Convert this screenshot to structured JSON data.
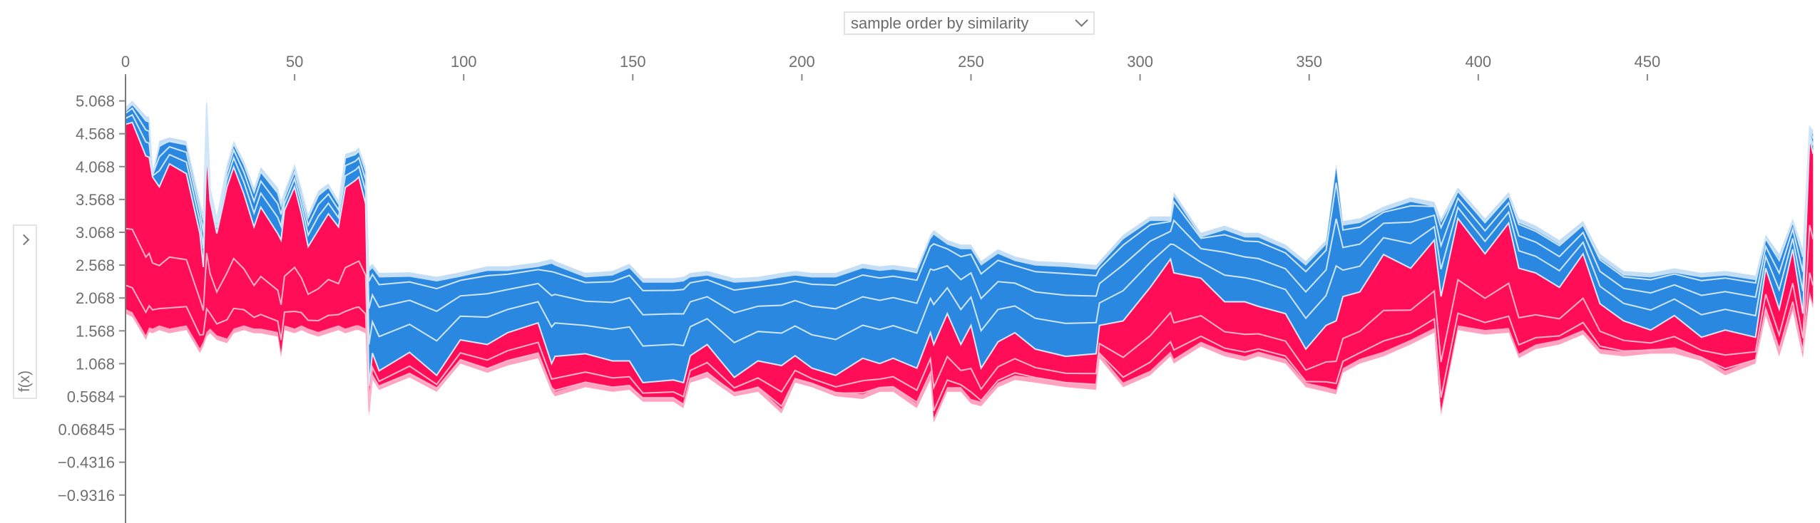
{
  "controls": {
    "order_select": "sample order by similarity",
    "y_select_label": "f(x)"
  },
  "colors": {
    "positive": "#ff0d57",
    "negative": "#2a88e0",
    "positive_edge": "#ffa3c0",
    "negative_edge": "#c4def6"
  },
  "chart_data": {
    "type": "area",
    "title": "",
    "xlabel": "",
    "ylabel": "f(x)",
    "xlim": [
      0,
      499
    ],
    "ylim": [
      -1.2,
      5.4
    ],
    "x_ticks": [
      "0",
      "50",
      "100",
      "150",
      "200",
      "250",
      "300",
      "350",
      "400",
      "450"
    ],
    "x_tick_values": [
      0,
      50,
      100,
      150,
      200,
      250,
      300,
      350,
      400,
      450
    ],
    "y_ticks": [
      "5.068",
      "4.568",
      "4.068",
      "3.568",
      "3.068",
      "2.568",
      "2.068",
      "1.568",
      "1.068",
      "0.5684",
      "0.06845",
      "-0.4316",
      "-0.9316"
    ],
    "y_tick_values": [
      5.068,
      4.568,
      4.068,
      3.568,
      3.068,
      2.568,
      2.068,
      1.568,
      1.068,
      0.5684,
      0.06845,
      -0.4316,
      -0.9316
    ],
    "series_fields": [
      "sample",
      "upper",
      "output_boundary",
      "lower"
    ],
    "series_note": "blue = negative contributions between upper and output_boundary; red = positive contributions between output_boundary and lower",
    "points": [
      [
        0,
        4.97,
        4.71,
        1.83
      ],
      [
        2,
        5.07,
        4.74,
        1.78
      ],
      [
        6,
        4.84,
        4.23,
        1.43
      ],
      [
        7,
        4.82,
        4.21,
        1.55
      ],
      [
        8,
        3.96,
        3.91,
        1.53
      ],
      [
        10,
        4.46,
        3.76,
        1.58
      ],
      [
        13,
        4.51,
        4.11,
        1.53
      ],
      [
        18,
        4.46,
        3.96,
        1.58
      ],
      [
        22,
        3.55,
        3.05,
        1.23
      ],
      [
        23,
        3.35,
        2.54,
        1.33
      ],
      [
        24,
        5.12,
        4.31,
        1.48
      ],
      [
        25,
        3.75,
        3.55,
        1.53
      ],
      [
        27,
        3.3,
        3.05,
        1.43
      ],
      [
        30,
        4.11,
        3.76,
        1.38
      ],
      [
        32,
        4.46,
        4.06,
        1.53
      ],
      [
        35,
        4.16,
        3.65,
        1.58
      ],
      [
        38,
        3.75,
        3.15,
        1.53
      ],
      [
        40,
        4.06,
        3.45,
        1.53
      ],
      [
        45,
        3.75,
        3.05,
        1.48
      ],
      [
        46,
        3.55,
        2.95,
        1.16
      ],
      [
        47,
        3.7,
        3.4,
        1.58
      ],
      [
        50,
        4.11,
        3.76,
        1.53
      ],
      [
        52,
        3.75,
        3.35,
        1.58
      ],
      [
        54,
        3.35,
        2.85,
        1.53
      ],
      [
        57,
        3.7,
        3.1,
        1.48
      ],
      [
        60,
        3.81,
        3.35,
        1.53
      ],
      [
        63,
        3.55,
        3.15,
        1.58
      ],
      [
        65,
        4.26,
        3.75,
        1.53
      ],
      [
        68,
        4.31,
        3.86,
        1.58
      ],
      [
        69,
        4.36,
        3.91,
        1.58
      ],
      [
        71,
        4.06,
        3.5,
        1.53
      ],
      [
        72,
        2.54,
        0.73,
        0.27
      ],
      [
        73,
        2.59,
        1.23,
        0.83
      ],
      [
        75,
        2.45,
        0.96,
        0.67
      ],
      [
        84,
        2.46,
        1.24,
        0.86
      ],
      [
        92,
        2.39,
        0.89,
        0.64
      ],
      [
        99,
        2.46,
        1.43,
        1.07
      ],
      [
        107,
        2.55,
        1.36,
        0.93
      ],
      [
        113,
        2.55,
        1.54,
        1.04
      ],
      [
        122,
        2.61,
        1.69,
        1.15
      ],
      [
        126,
        2.66,
        1.07,
        0.64
      ],
      [
        127,
        2.63,
        1.18,
        0.57
      ],
      [
        136,
        2.45,
        1.22,
        0.71
      ],
      [
        144,
        2.48,
        1.11,
        0.64
      ],
      [
        149,
        2.59,
        1.11,
        0.67
      ],
      [
        153,
        2.37,
        0.78,
        0.49
      ],
      [
        162,
        2.37,
        0.82,
        0.49
      ],
      [
        165,
        2.39,
        0.78,
        0.39
      ],
      [
        167,
        2.45,
        1.19,
        0.78
      ],
      [
        172,
        2.48,
        1.36,
        0.86
      ],
      [
        180,
        2.37,
        0.86,
        0.57
      ],
      [
        187,
        2.39,
        1.11,
        0.64
      ],
      [
        194,
        2.45,
        1.04,
        0.31
      ],
      [
        198,
        2.48,
        1.19,
        0.78
      ],
      [
        203,
        2.45,
        1.0,
        0.71
      ],
      [
        210,
        2.45,
        0.89,
        0.57
      ],
      [
        218,
        2.59,
        1.15,
        0.53
      ],
      [
        223,
        2.55,
        1.07,
        0.64
      ],
      [
        227,
        2.57,
        1.15,
        0.64
      ],
      [
        234,
        2.52,
        1.0,
        0.39
      ],
      [
        238,
        3.03,
        1.54,
        0.82
      ],
      [
        239,
        3.1,
        1.36,
        0.17
      ],
      [
        243,
        2.95,
        1.83,
        0.64
      ],
      [
        247,
        2.88,
        1.36,
        0.64
      ],
      [
        250,
        2.88,
        1.65,
        0.46
      ],
      [
        253,
        2.63,
        1.0,
        0.42
      ],
      [
        258,
        2.81,
        1.4,
        0.71
      ],
      [
        263,
        2.7,
        1.54,
        0.82
      ],
      [
        269,
        2.63,
        1.29,
        0.78
      ],
      [
        278,
        2.61,
        1.18,
        0.71
      ],
      [
        287,
        2.57,
        1.22,
        0.67
      ],
      [
        288,
        2.63,
        1.65,
        1.15
      ],
      [
        295,
        3.03,
        1.72,
        0.71
      ],
      [
        303,
        3.31,
        2.23,
        0.89
      ],
      [
        309,
        3.31,
        2.66,
        1.18
      ],
      [
        310,
        3.68,
        2.45,
        1.07
      ],
      [
        318,
        3.06,
        2.37,
        1.33
      ],
      [
        325,
        3.17,
        2.01,
        1.18
      ],
      [
        331,
        3.06,
        2.01,
        1.11
      ],
      [
        335,
        3.06,
        1.94,
        1.18
      ],
      [
        343,
        2.88,
        1.83,
        1.07
      ],
      [
        349,
        2.63,
        1.29,
        0.71
      ],
      [
        355,
        2.95,
        1.65,
        0.64
      ],
      [
        358,
        4.11,
        1.72,
        0.6
      ],
      [
        360,
        3.24,
        2.09,
        0.93
      ],
      [
        365,
        3.28,
        2.16,
        1.07
      ],
      [
        372,
        3.46,
        2.73,
        1.18
      ],
      [
        380,
        3.6,
        2.52,
        1.36
      ],
      [
        387,
        3.53,
        2.95,
        1.54
      ],
      [
        389,
        3.28,
        2.09,
        0.28
      ],
      [
        394,
        3.75,
        3.28,
        1.58
      ],
      [
        402,
        3.28,
        2.74,
        1.51
      ],
      [
        409,
        3.68,
        3.21,
        1.54
      ],
      [
        412,
        3.28,
        2.52,
        1.15
      ],
      [
        417,
        3.17,
        2.45,
        1.29
      ],
      [
        424,
        2.95,
        2.23,
        1.36
      ],
      [
        431,
        3.24,
        2.74,
        1.51
      ],
      [
        436,
        2.74,
        1.98,
        1.22
      ],
      [
        443,
        2.48,
        1.72,
        1.18
      ],
      [
        451,
        2.45,
        1.58,
        1.22
      ],
      [
        458,
        2.52,
        1.8,
        1.22
      ],
      [
        466,
        2.45,
        1.47,
        1.11
      ],
      [
        473,
        2.48,
        1.58,
        0.89
      ],
      [
        482,
        2.41,
        1.47,
        1.07
      ],
      [
        485,
        3.03,
        2.52,
        1.8
      ],
      [
        489,
        2.74,
        1.9,
        1.18
      ],
      [
        493,
        3.28,
        2.81,
        1.87
      ],
      [
        496,
        2.81,
        1.83,
        1.15
      ],
      [
        498,
        4.69,
        4.51,
        2.09
      ],
      [
        499,
        4.62,
        4.26,
        1.9
      ]
    ]
  }
}
